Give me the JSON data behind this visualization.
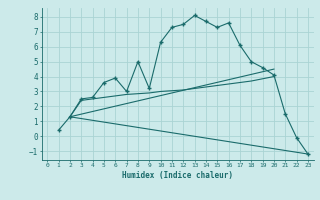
{
  "xlabel": "Humidex (Indice chaleur)",
  "background_color": "#cceaea",
  "grid_color": "#aad4d4",
  "line_color": "#1a6b6b",
  "xlim": [
    -0.5,
    23.5
  ],
  "ylim": [
    -1.6,
    8.6
  ],
  "yticks": [
    -1,
    0,
    1,
    2,
    3,
    4,
    5,
    6,
    7,
    8
  ],
  "xticks": [
    0,
    1,
    2,
    3,
    4,
    5,
    6,
    7,
    8,
    9,
    10,
    11,
    12,
    13,
    14,
    15,
    16,
    17,
    18,
    19,
    20,
    21,
    22,
    23
  ],
  "line1_x": [
    1,
    2,
    3,
    4,
    5,
    6,
    7,
    8,
    9,
    10,
    11,
    12,
    13,
    14,
    15,
    16,
    17,
    18,
    19,
    20,
    21,
    22,
    23
  ],
  "line1_y": [
    0.4,
    1.3,
    2.5,
    2.6,
    3.6,
    3.9,
    3.0,
    5.0,
    3.2,
    6.3,
    7.3,
    7.5,
    8.1,
    7.7,
    7.3,
    7.6,
    6.1,
    5.0,
    4.6,
    4.1,
    1.5,
    -0.1,
    -1.2
  ],
  "line2_x": [
    2,
    3,
    4,
    5,
    6,
    7,
    8,
    9,
    10,
    11,
    12,
    13,
    14,
    15,
    16,
    17,
    18,
    19,
    20
  ],
  "line2_y": [
    1.3,
    2.4,
    2.5,
    2.6,
    2.7,
    2.8,
    2.85,
    2.9,
    3.0,
    3.05,
    3.1,
    3.2,
    3.3,
    3.4,
    3.5,
    3.6,
    3.7,
    3.85,
    4.0
  ],
  "line3_x": [
    2,
    20
  ],
  "line3_y": [
    1.3,
    4.5
  ],
  "line4_x": [
    2,
    23
  ],
  "line4_y": [
    1.3,
    -1.2
  ]
}
